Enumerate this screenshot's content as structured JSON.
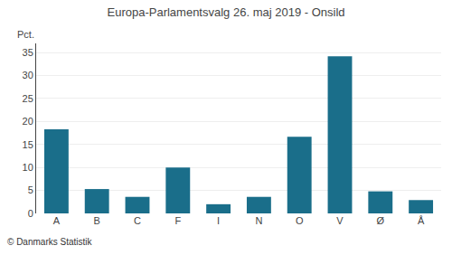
{
  "chart_data": {
    "type": "bar",
    "title": "Europa-Parlamentsvalg 26. maj 2019 - Onsild",
    "ylabel": "Pct.",
    "annotations": [
      "© Danmarks Statistik"
    ],
    "categories": [
      "A",
      "B",
      "C",
      "F",
      "I",
      "N",
      "O",
      "V",
      "Ø",
      "Å"
    ],
    "values": [
      18.3,
      5.3,
      3.6,
      10.0,
      2.0,
      3.6,
      16.7,
      34.2,
      4.8,
      2.9
    ],
    "color": "#1a6e8a",
    "ylim": [
      0,
      37
    ],
    "yticks": [
      0,
      5,
      10,
      15,
      20,
      25,
      30,
      35
    ],
    "grid": true
  }
}
